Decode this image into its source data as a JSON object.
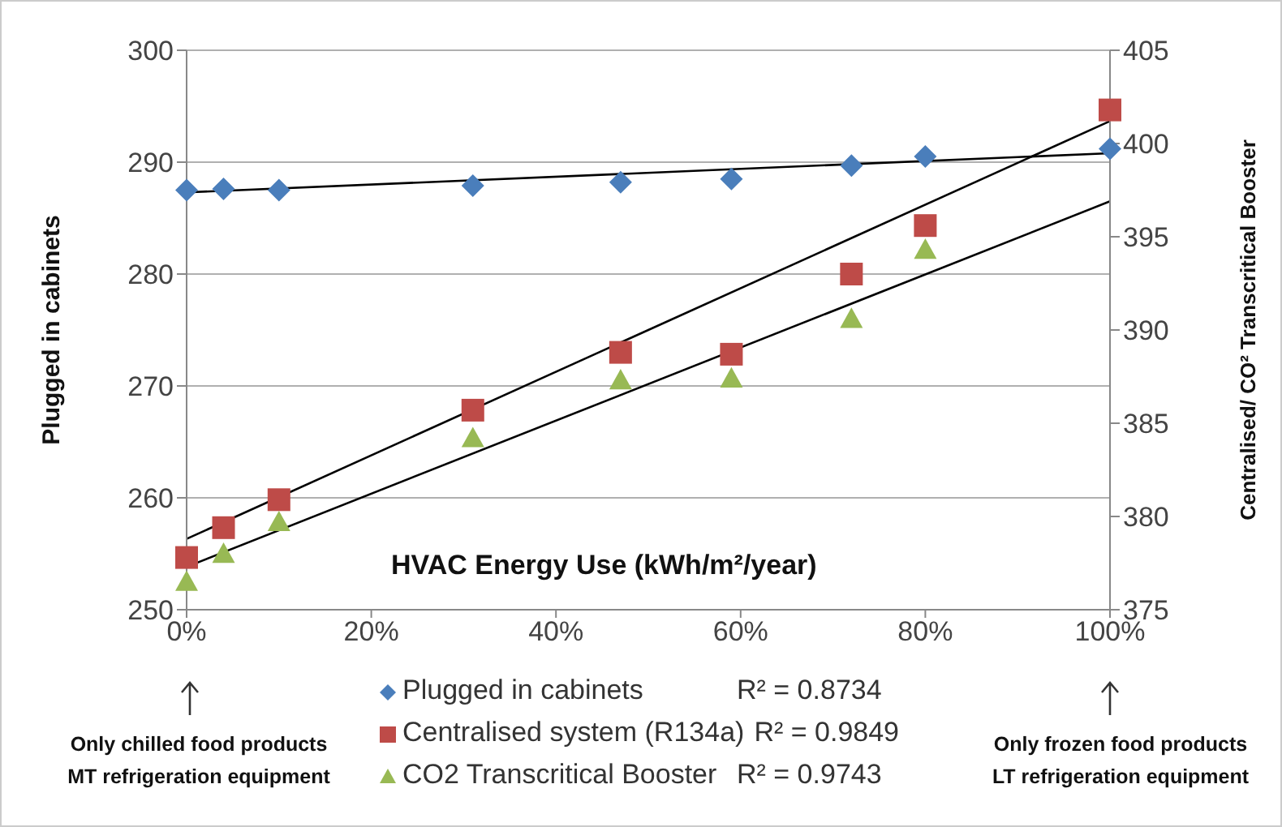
{
  "chart_data": {
    "type": "scatter",
    "xlabel": "HVAC Energy Use (kWh/m²/year)",
    "ylabel": "Plugged in cabinets",
    "y2label": "Centralised/ CO² Transcritical Booster",
    "xlim": [
      0,
      100
    ],
    "xticks": [
      {
        "value": 0,
        "label": "0%"
      },
      {
        "value": 20,
        "label": "20%"
      },
      {
        "value": 40,
        "label": "40%"
      },
      {
        "value": 60,
        "label": "60%"
      },
      {
        "value": 80,
        "label": "80%"
      },
      {
        "value": 100,
        "label": "100%"
      }
    ],
    "ylim": [
      250,
      300
    ],
    "yticks": [
      250,
      260,
      270,
      280,
      290,
      300
    ],
    "y2lim": [
      375,
      405
    ],
    "y2ticks": [
      375,
      380,
      385,
      390,
      395,
      400,
      405
    ],
    "grid": "y",
    "legend": "bottom",
    "series": [
      {
        "name": "Plugged in cabinets",
        "marker": "diamond",
        "color": "#4a7ebb",
        "x": [
          0,
          4,
          10,
          31,
          47,
          59,
          72,
          80,
          100
        ],
        "values": [
          287.5,
          287.6,
          287.5,
          287.9,
          288.2,
          288.5,
          289.7,
          290.5,
          291.2
        ]
      },
      {
        "name": "Centralised system (R134a)",
        "marker": "square",
        "axis": "y2",
        "color": "#be4b48",
        "x": [
          0,
          4,
          10,
          31,
          47,
          59,
          72,
          80,
          100
        ],
        "values": [
          377.8,
          379.4,
          380.9,
          385.7,
          388.8,
          388.7,
          393.0,
          395.6,
          401.8
        ]
      },
      {
        "name": "CO2 Transcritical Booster",
        "marker": "triangle",
        "axis": "y2",
        "color": "#98b954",
        "x": [
          0,
          4,
          10,
          31,
          47,
          59,
          72,
          80
        ],
        "values": [
          376.5,
          378.0,
          379.7,
          384.2,
          387.3,
          387.4,
          390.6,
          394.3
        ]
      },
      {
        "type": "line",
        "marker": "none",
        "color": "#000000",
        "x": [
          0,
          100
        ],
        "values": [
          287.3,
          290.8
        ]
      },
      {
        "type": "line",
        "marker": "none",
        "axis": "y2",
        "color": "#000000",
        "x": [
          0,
          100
        ],
        "values": [
          378.8,
          401.2
        ]
      },
      {
        "type": "line",
        "marker": "none",
        "axis": "y2",
        "color": "#000000",
        "x": [
          0,
          100
        ],
        "values": [
          377.3,
          396.9
        ]
      }
    ],
    "annotations": [
      "R² = 0.8734",
      "R² = 0.9849",
      "R² = 0.9743",
      "Only chilled food products\nMT refrigeration equipment",
      "Only frozen food products\nLT refrigeration equipment"
    ]
  }
}
